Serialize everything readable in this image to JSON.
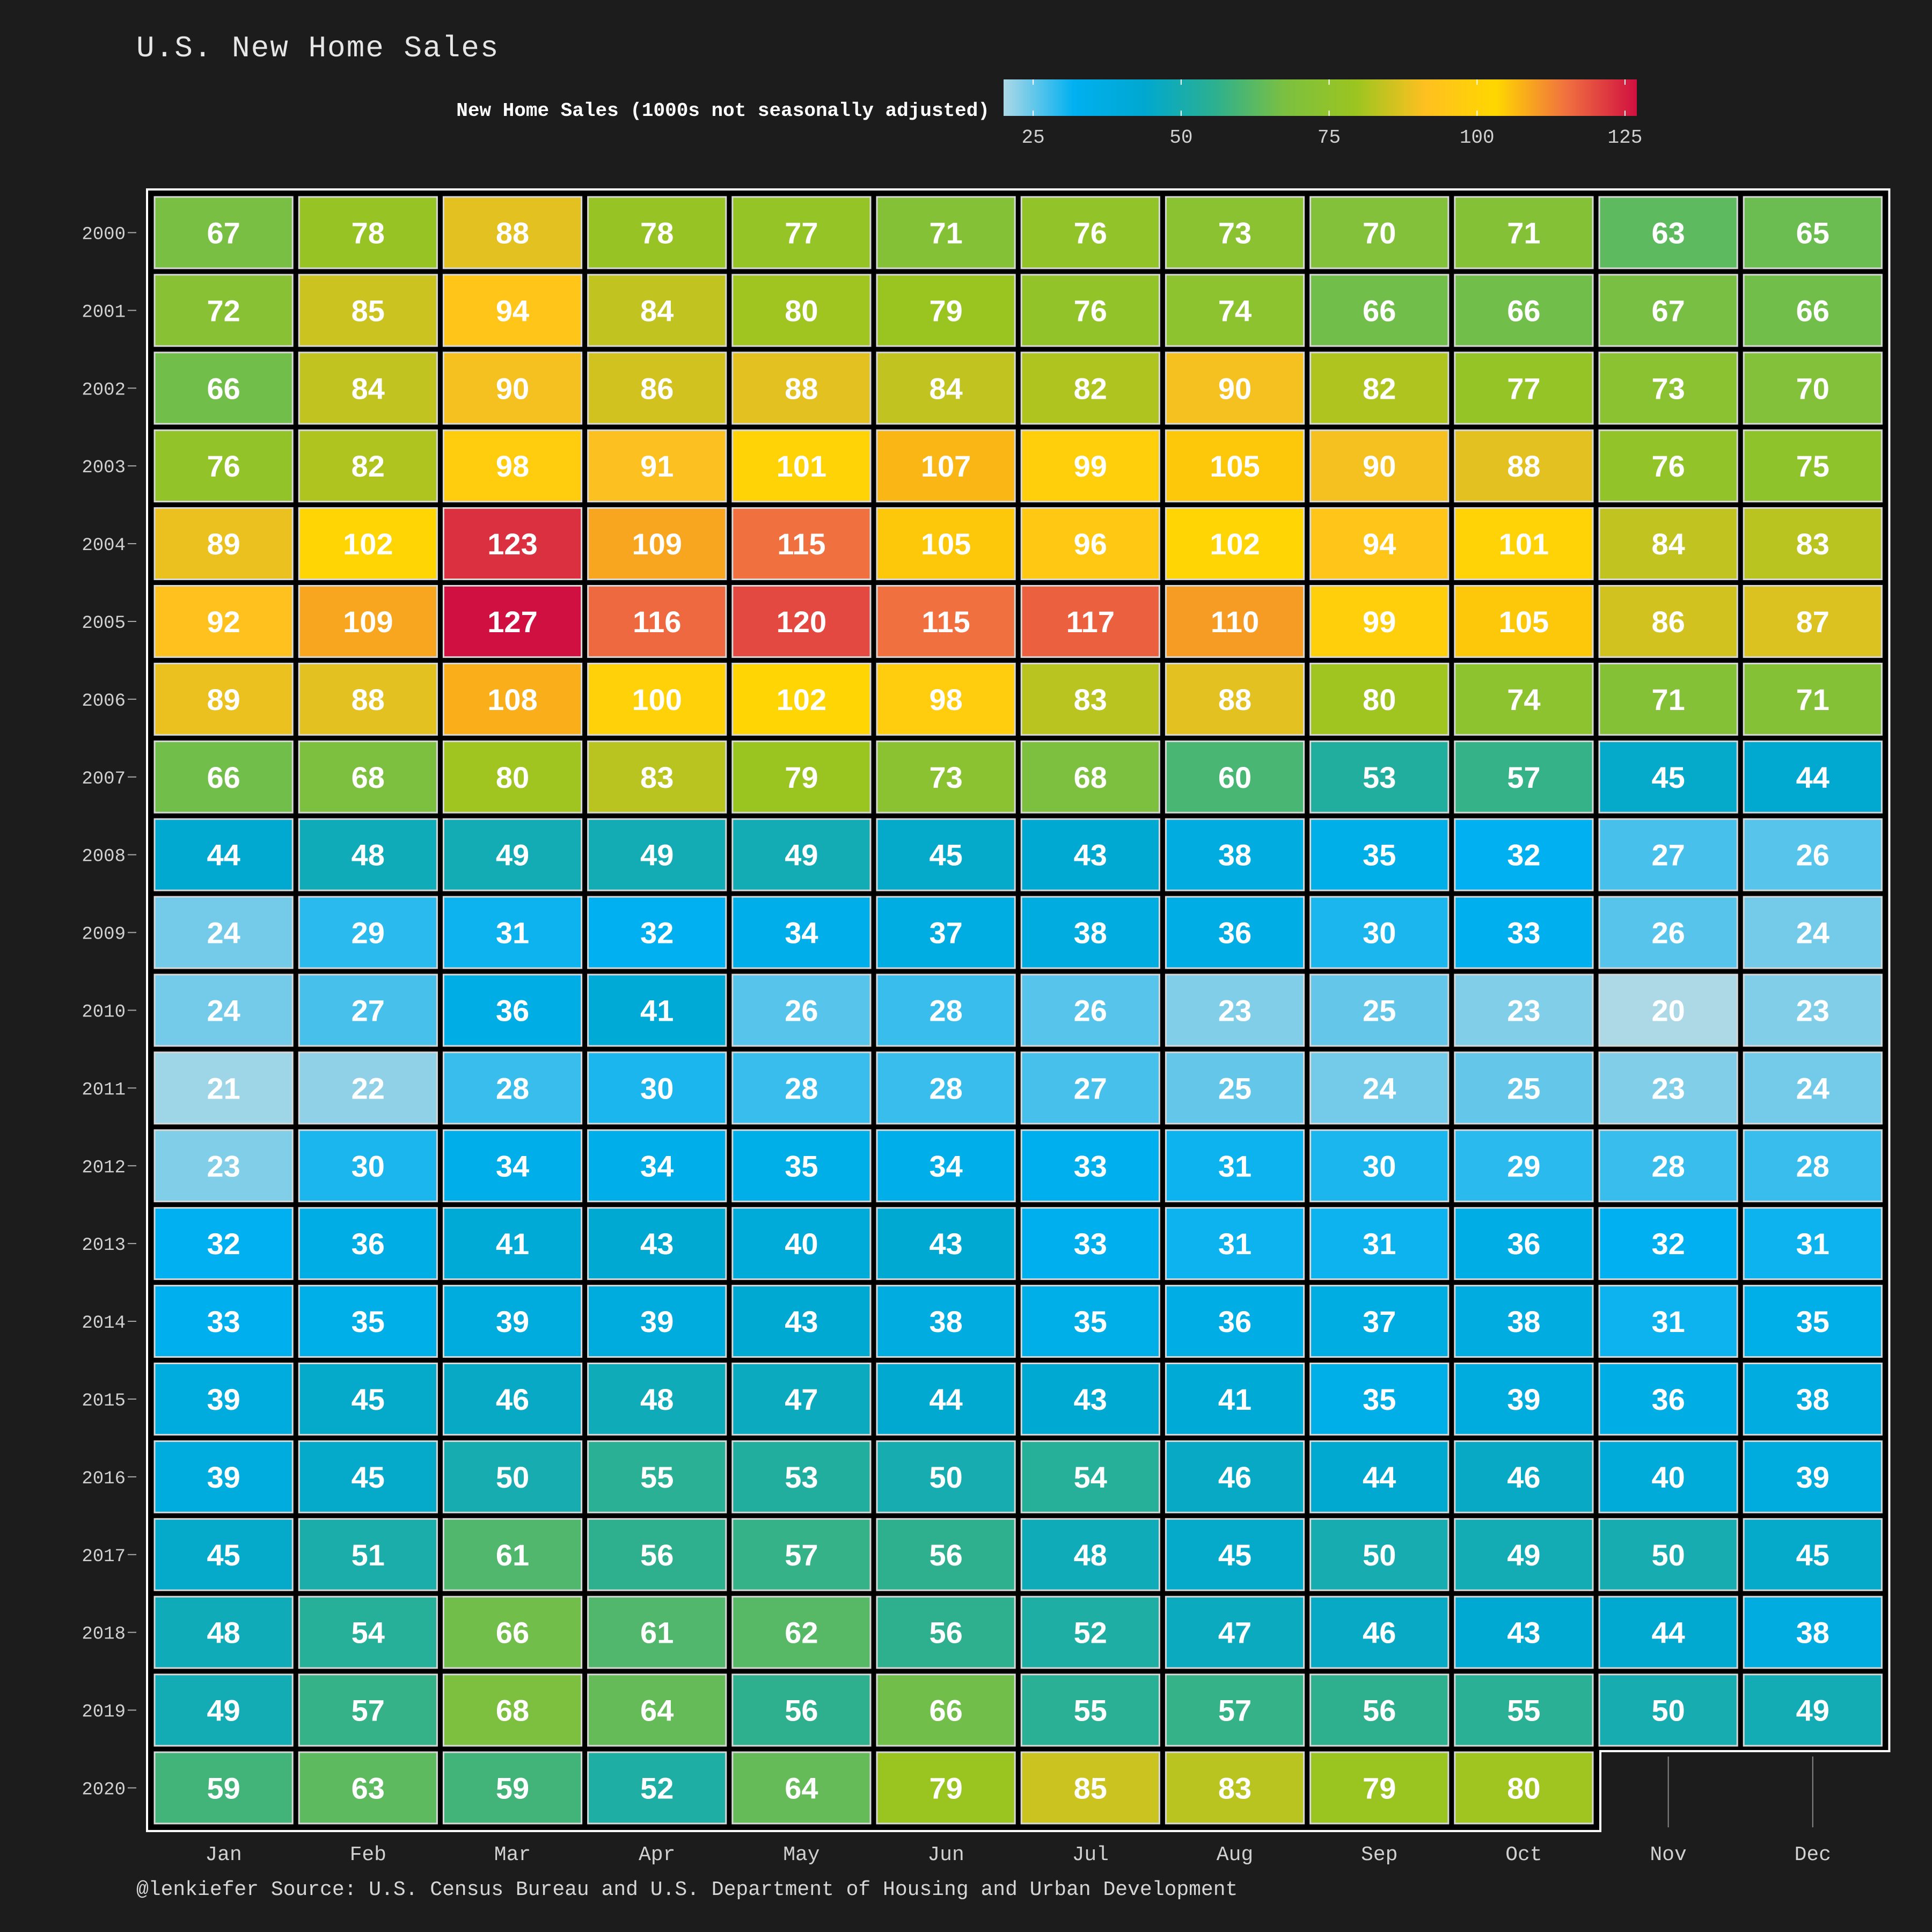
{
  "title": "U.S. New Home Sales",
  "caption": "@lenkiefer Source: U.S. Census Bureau and  U.S. Department of Housing and Urban Development",
  "legend": {
    "title": "New Home Sales (1000s not seasonally adjusted)",
    "ticks": [
      25,
      50,
      75,
      100,
      125
    ],
    "range": [
      20,
      127
    ]
  },
  "colors": {
    "background": "#1c1c1c",
    "scale": [
      "#add8e6",
      "#00b0f0",
      "#00a8d0",
      "#2cb090",
      "#7cc040",
      "#9bc520",
      "#ffc020",
      "#ffd700",
      "#f07040",
      "#d01040"
    ]
  },
  "chart_data": {
    "type": "heatmap",
    "title": "U.S. New Home Sales",
    "x": [
      "Jan",
      "Feb",
      "Mar",
      "Apr",
      "May",
      "Jun",
      "Jul",
      "Aug",
      "Sep",
      "Oct",
      "Nov",
      "Dec"
    ],
    "y": [
      "2000",
      "2001",
      "2002",
      "2003",
      "2004",
      "2005",
      "2006",
      "2007",
      "2008",
      "2009",
      "2010",
      "2011",
      "2012",
      "2013",
      "2014",
      "2015",
      "2016",
      "2017",
      "2018",
      "2019",
      "2020"
    ],
    "values": [
      [
        67,
        78,
        88,
        78,
        77,
        71,
        76,
        73,
        70,
        71,
        63,
        65
      ],
      [
        72,
        85,
        94,
        84,
        80,
        79,
        76,
        74,
        66,
        66,
        67,
        66
      ],
      [
        66,
        84,
        90,
        86,
        88,
        84,
        82,
        90,
        82,
        77,
        73,
        70
      ],
      [
        76,
        82,
        98,
        91,
        101,
        107,
        99,
        105,
        90,
        88,
        76,
        75
      ],
      [
        89,
        102,
        123,
        109,
        115,
        105,
        96,
        102,
        94,
        101,
        84,
        83
      ],
      [
        92,
        109,
        127,
        116,
        120,
        115,
        117,
        110,
        99,
        105,
        86,
        87
      ],
      [
        89,
        88,
        108,
        100,
        102,
        98,
        83,
        88,
        80,
        74,
        71,
        71
      ],
      [
        66,
        68,
        80,
        83,
        79,
        73,
        68,
        60,
        53,
        57,
        45,
        44
      ],
      [
        44,
        48,
        49,
        49,
        49,
        45,
        43,
        38,
        35,
        32,
        27,
        26
      ],
      [
        24,
        29,
        31,
        32,
        34,
        37,
        38,
        36,
        30,
        33,
        26,
        24
      ],
      [
        24,
        27,
        36,
        41,
        26,
        28,
        26,
        23,
        25,
        23,
        20,
        23
      ],
      [
        21,
        22,
        28,
        30,
        28,
        28,
        27,
        25,
        24,
        25,
        23,
        24
      ],
      [
        23,
        30,
        34,
        34,
        35,
        34,
        33,
        31,
        30,
        29,
        28,
        28
      ],
      [
        32,
        36,
        41,
        43,
        40,
        43,
        33,
        31,
        31,
        36,
        32,
        31
      ],
      [
        33,
        35,
        39,
        39,
        43,
        38,
        35,
        36,
        37,
        38,
        31,
        35
      ],
      [
        39,
        45,
        46,
        48,
        47,
        44,
        43,
        41,
        35,
        39,
        36,
        38
      ],
      [
        39,
        45,
        50,
        55,
        53,
        50,
        54,
        46,
        44,
        46,
        40,
        39
      ],
      [
        45,
        51,
        61,
        56,
        57,
        56,
        48,
        45,
        50,
        49,
        50,
        45
      ],
      [
        48,
        54,
        66,
        61,
        62,
        56,
        52,
        47,
        46,
        43,
        44,
        38
      ],
      [
        49,
        57,
        68,
        64,
        56,
        66,
        55,
        57,
        56,
        55,
        50,
        49
      ],
      [
        59,
        63,
        59,
        52,
        64,
        79,
        85,
        83,
        79,
        80,
        null,
        null
      ]
    ]
  }
}
